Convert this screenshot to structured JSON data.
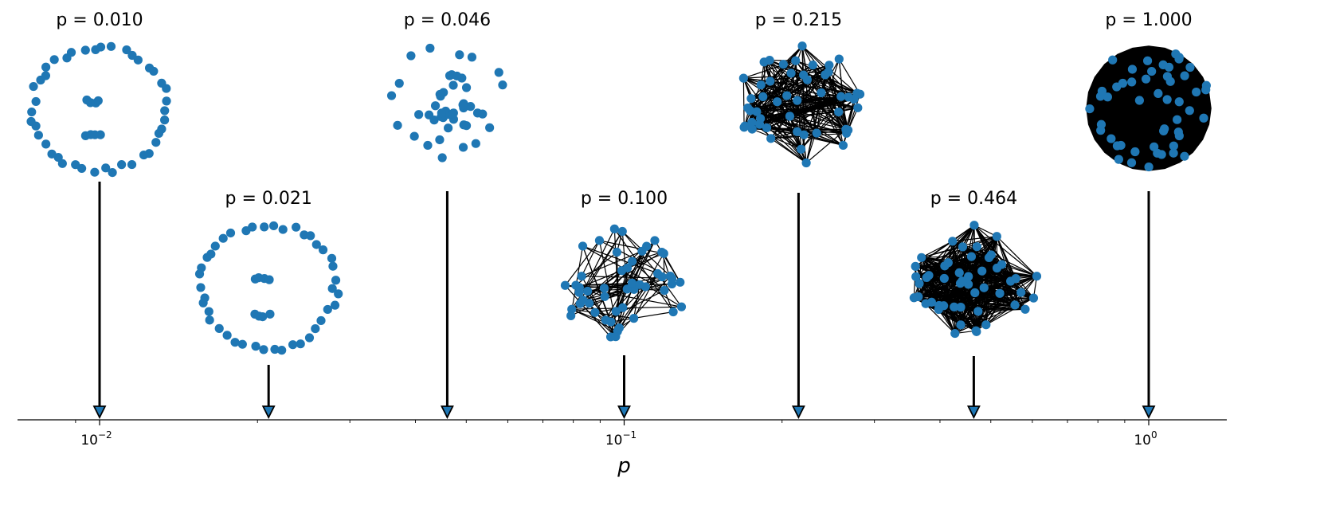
{
  "chart_data": {
    "type": "scatter",
    "x": [
      0.01,
      0.021,
      0.046,
      0.1,
      0.215,
      0.464,
      1.0
    ],
    "titles": [
      "p = 0.010",
      "p = 0.021",
      "p = 0.046",
      "p = 0.100",
      "p = 0.215",
      "p = 0.464",
      "p = 1.000"
    ],
    "xscale": "log",
    "xlim": [
      0.00835,
      1.25
    ],
    "x_ticks": [
      "10^-2",
      "10^-1",
      "10^0"
    ],
    "xlabel": "p",
    "node_count": 50,
    "marker_color": "#1f77b4",
    "edge_color": "#000000",
    "grid": false
  }
}
